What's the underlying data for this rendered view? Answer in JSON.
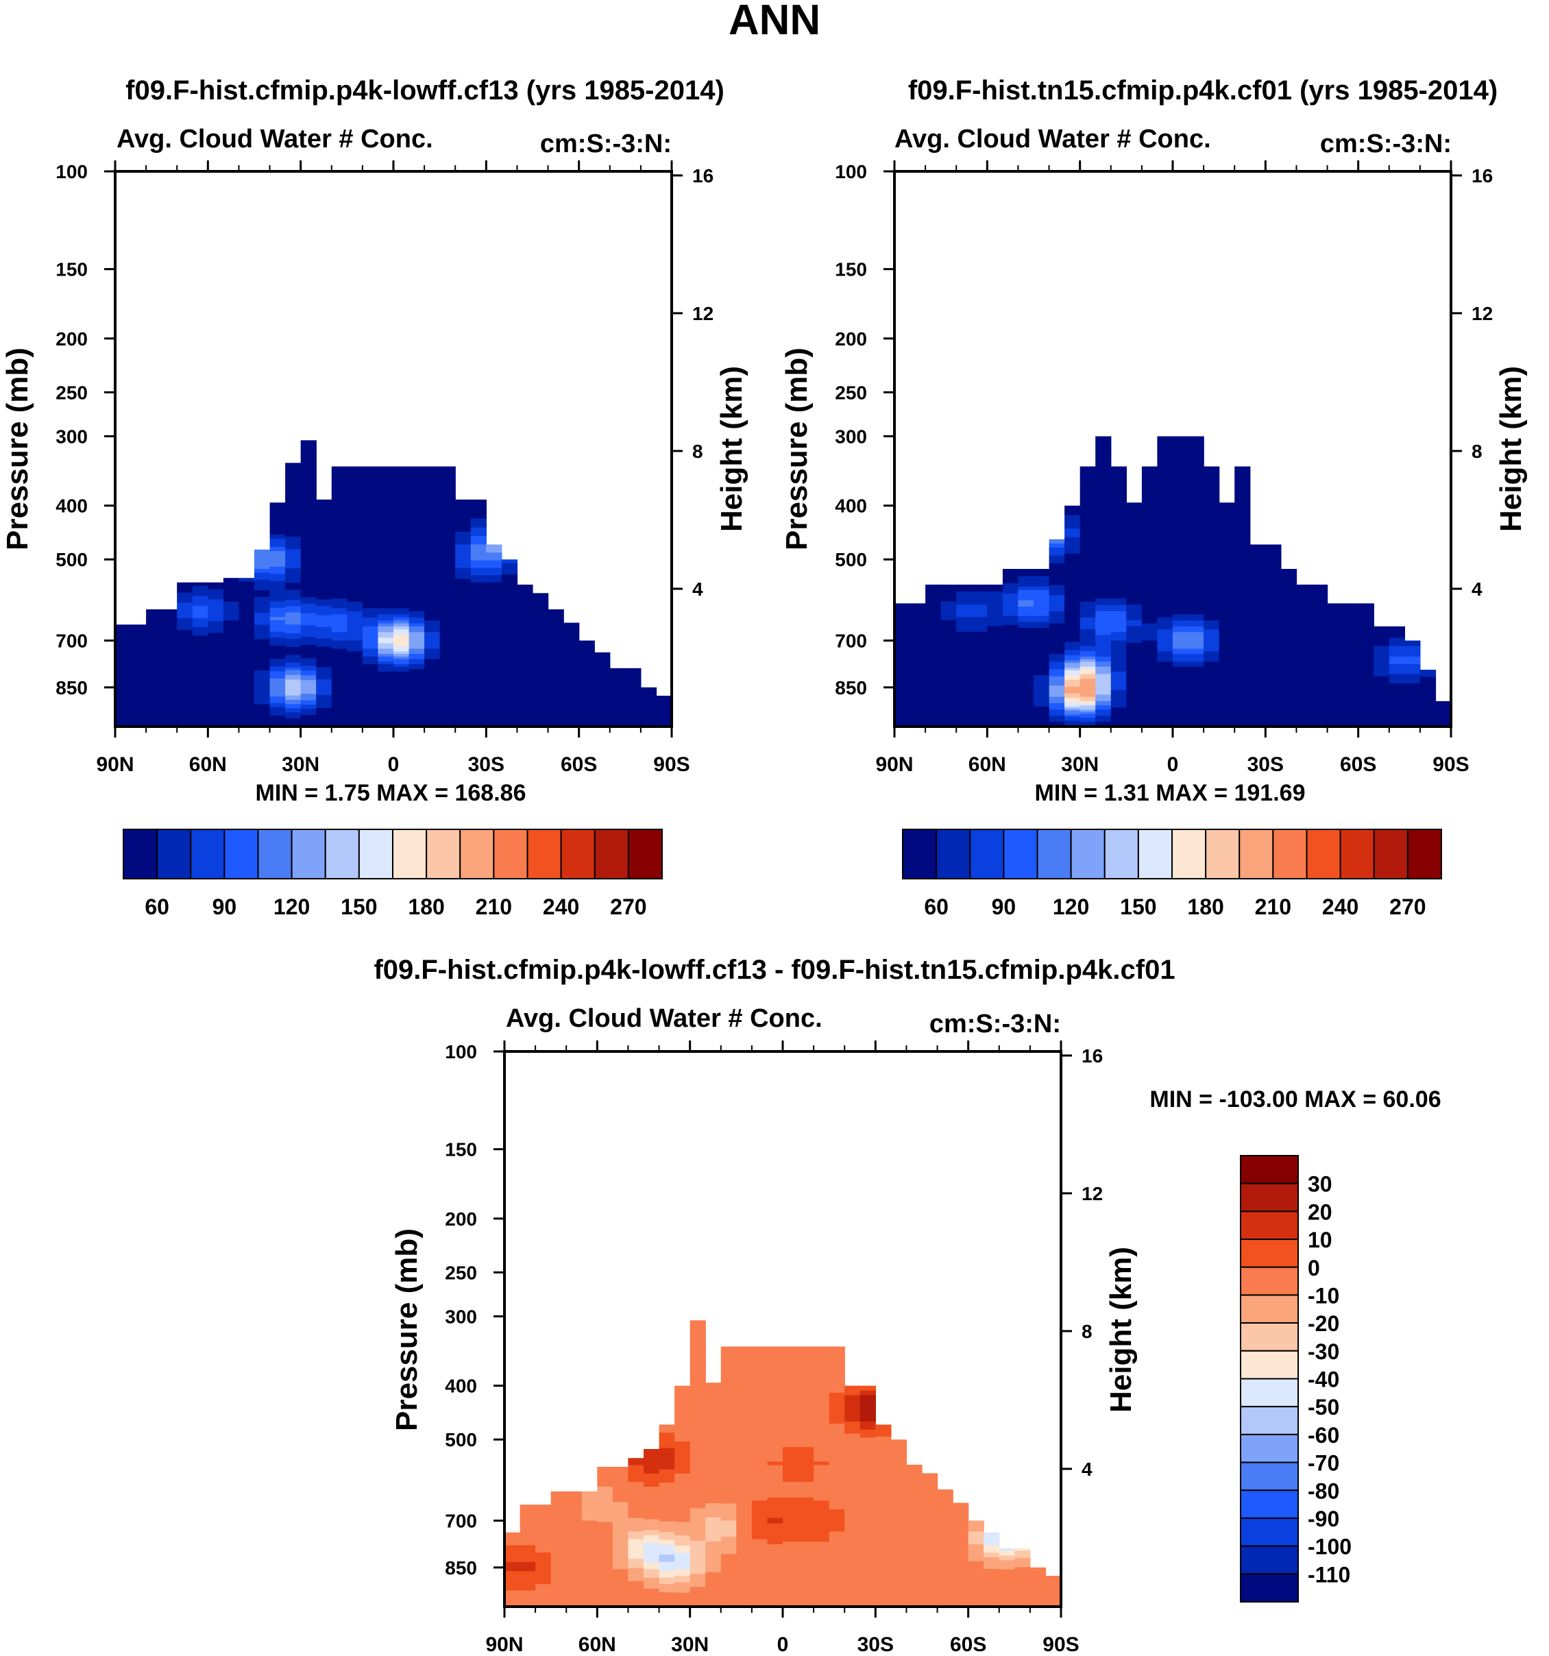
{
  "figure": {
    "title": "ANN"
  },
  "chart_data": [
    {
      "type": "heatmap",
      "title": "f09.F-hist.cfmip.p4k-lowff.cf13 (yrs 1985-2014)",
      "subtitle_left": "Avg. Cloud Water # Conc.",
      "subtitle_right": "cm:S:-3:N:",
      "ylabel": "Pressure (mb)",
      "ylabel_right": "Height (km)",
      "x_ticks": [
        "90N",
        "60N",
        "30N",
        "0",
        "30S",
        "60S",
        "90S"
      ],
      "y_ticks": [
        100,
        150,
        200,
        250,
        300,
        400,
        500,
        700,
        850
      ],
      "y_ticks_right": [
        16,
        12,
        8,
        4
      ],
      "ylim": [
        100,
        1000
      ],
      "y_scale": "log",
      "stats": "MIN =   1.75  MAX = 168.86",
      "colorbar_ticks": [
        "60",
        "90",
        "120",
        "150",
        "180",
        "210",
        "240",
        "270"
      ],
      "colorbar_colors": [
        "#000a80",
        "#0028b4",
        "#0a3fe0",
        "#1e5aff",
        "#4a7cf5",
        "#7fa3f9",
        "#b2c8fb",
        "#dce8fd",
        "#fde7d2",
        "#fcc7a8",
        "#fba57c",
        "#f97c4e",
        "#f1521f",
        "#d43010",
        "#b21b0b",
        "#870000"
      ],
      "field": {
        "lat_columns": [
          {
            "lat": -90,
            "top_p": 655
          },
          {
            "lat": -85,
            "top_p": 655
          },
          {
            "lat": -80,
            "top_p": 615
          },
          {
            "lat": -75,
            "top_p": 615
          },
          {
            "lat": -70,
            "top_p": 550
          },
          {
            "lat": -65,
            "top_p": 550
          },
          {
            "lat": -60,
            "top_p": 550
          },
          {
            "lat": -55,
            "top_p": 540
          },
          {
            "lat": -50,
            "top_p": 540
          },
          {
            "lat": -45,
            "top_p": 480
          },
          {
            "lat": -40,
            "top_p": 395
          },
          {
            "lat": -35,
            "top_p": 335
          },
          {
            "lat": -30,
            "top_p": 305
          },
          {
            "lat": -25,
            "top_p": 390
          },
          {
            "lat": -20,
            "top_p": 340
          },
          {
            "lat": -15,
            "top_p": 340
          },
          {
            "lat": -10,
            "top_p": 340
          },
          {
            "lat": -5,
            "top_p": 340
          },
          {
            "lat": 0,
            "top_p": 340
          },
          {
            "lat": 5,
            "top_p": 340
          },
          {
            "lat": 10,
            "top_p": 340
          },
          {
            "lat": 15,
            "top_p": 340
          },
          {
            "lat": 20,
            "top_p": 390
          },
          {
            "lat": 25,
            "top_p": 390
          },
          {
            "lat": 30,
            "top_p": 470
          },
          {
            "lat": 35,
            "top_p": 500
          },
          {
            "lat": 40,
            "top_p": 555
          },
          {
            "lat": 45,
            "top_p": 575
          },
          {
            "lat": 50,
            "top_p": 615
          },
          {
            "lat": 55,
            "top_p": 650
          },
          {
            "lat": 60,
            "top_p": 700
          },
          {
            "lat": 65,
            "top_p": 735
          },
          {
            "lat": 70,
            "top_p": 785
          },
          {
            "lat": 75,
            "top_p": 785
          },
          {
            "lat": 80,
            "top_p": 850
          },
          {
            "lat": 85,
            "top_p": 880
          }
        ],
        "base_value": 45,
        "features": [
          {
            "lat": -62,
            "p": 620,
            "value": 95
          },
          {
            "lat": -32,
            "p": 850,
            "value": 150
          },
          {
            "lat": -40,
            "p": 500,
            "value": 120
          },
          {
            "lat": -35,
            "p": 640,
            "value": 110
          },
          {
            "lat": -18,
            "p": 650,
            "value": 95
          },
          {
            "lat": 0,
            "p": 700,
            "value": 100
          },
          {
            "lat": 3,
            "p": 700,
            "value": 125
          },
          {
            "lat": 35,
            "p": 460,
            "value": 110
          },
          {
            "lat": 28,
            "p": 500,
            "value": 95
          }
        ]
      }
    },
    {
      "type": "heatmap",
      "title": "f09.F-hist.tn15.cfmip.p4k.cf01 (yrs 1985-2014)",
      "subtitle_left": "Avg. Cloud Water # Conc.",
      "subtitle_right": "cm:S:-3:N:",
      "ylabel": "Pressure (mb)",
      "ylabel_right": "Height (km)",
      "x_ticks": [
        "90N",
        "60N",
        "30N",
        "0",
        "30S",
        "60S",
        "90S"
      ],
      "y_ticks": [
        100,
        150,
        200,
        250,
        300,
        400,
        500,
        700,
        850
      ],
      "y_ticks_right": [
        16,
        12,
        8,
        4
      ],
      "ylim": [
        100,
        1000
      ],
      "y_scale": "log",
      "stats": "MIN =   1.31  MAX = 191.69",
      "colorbar_ticks": [
        "60",
        "90",
        "120",
        "150",
        "180",
        "210",
        "240",
        "270"
      ],
      "colorbar_colors": [
        "#000a80",
        "#0028b4",
        "#0a3fe0",
        "#1e5aff",
        "#4a7cf5",
        "#7fa3f9",
        "#b2c8fb",
        "#dce8fd",
        "#fde7d2",
        "#fcc7a8",
        "#fba57c",
        "#f97c4e",
        "#f1521f",
        "#d43010",
        "#b21b0b",
        "#870000"
      ],
      "field": {
        "lat_columns": [
          {
            "lat": -90,
            "top_p": 600
          },
          {
            "lat": -85,
            "top_p": 600
          },
          {
            "lat": -80,
            "top_p": 555
          },
          {
            "lat": -75,
            "top_p": 555
          },
          {
            "lat": -70,
            "top_p": 555
          },
          {
            "lat": -65,
            "top_p": 555
          },
          {
            "lat": -60,
            "top_p": 555
          },
          {
            "lat": -55,
            "top_p": 520
          },
          {
            "lat": -50,
            "top_p": 520
          },
          {
            "lat": -45,
            "top_p": 520
          },
          {
            "lat": -40,
            "top_p": 460
          },
          {
            "lat": -35,
            "top_p": 400
          },
          {
            "lat": -30,
            "top_p": 340
          },
          {
            "lat": -25,
            "top_p": 300
          },
          {
            "lat": -20,
            "top_p": 340
          },
          {
            "lat": -15,
            "top_p": 395
          },
          {
            "lat": -10,
            "top_p": 340
          },
          {
            "lat": -5,
            "top_p": 300
          },
          {
            "lat": 0,
            "top_p": 300
          },
          {
            "lat": 5,
            "top_p": 300
          },
          {
            "lat": 10,
            "top_p": 340
          },
          {
            "lat": 15,
            "top_p": 395
          },
          {
            "lat": 20,
            "top_p": 340
          },
          {
            "lat": 25,
            "top_p": 470
          },
          {
            "lat": 30,
            "top_p": 470
          },
          {
            "lat": 35,
            "top_p": 520
          },
          {
            "lat": 40,
            "top_p": 555
          },
          {
            "lat": 45,
            "top_p": 555
          },
          {
            "lat": 50,
            "top_p": 600
          },
          {
            "lat": 55,
            "top_p": 600
          },
          {
            "lat": 60,
            "top_p": 600
          },
          {
            "lat": 65,
            "top_p": 660
          },
          {
            "lat": 70,
            "top_p": 660
          },
          {
            "lat": 75,
            "top_p": 700
          },
          {
            "lat": 80,
            "top_p": 790
          },
          {
            "lat": 85,
            "top_p": 900
          }
        ],
        "base_value": 45,
        "features": [
          {
            "lat": -30,
            "p": 880,
            "value": 175
          },
          {
            "lat": -28,
            "p": 800,
            "value": 140
          },
          {
            "lat": -42,
            "p": 450,
            "value": 140
          },
          {
            "lat": -45,
            "p": 600,
            "value": 110
          },
          {
            "lat": -20,
            "p": 650,
            "value": 105
          },
          {
            "lat": 5,
            "p": 700,
            "value": 120
          },
          {
            "lat": -65,
            "p": 620,
            "value": 80
          },
          {
            "lat": 75,
            "p": 760,
            "value": 95
          }
        ]
      }
    },
    {
      "type": "heatmap",
      "title": "f09.F-hist.cfmip.p4k-lowff.cf13 - f09.F-hist.tn15.cfmip.p4k.cf01",
      "subtitle_left": "Avg. Cloud Water # Conc.",
      "subtitle_right": "cm:S:-3:N:",
      "ylabel": "Pressure (mb)",
      "ylabel_right": "Height (km)",
      "x_ticks": [
        "90N",
        "60N",
        "30N",
        "0",
        "30S",
        "60S",
        "90S"
      ],
      "y_ticks": [
        100,
        150,
        200,
        250,
        300,
        400,
        500,
        700,
        850
      ],
      "y_ticks_right": [
        16,
        12,
        8,
        4
      ],
      "ylim": [
        100,
        1000
      ],
      "y_scale": "log",
      "stats": "MIN = -103.00  MAX =  60.06",
      "colorbar_ticks": [
        "30",
        "20",
        "10",
        "0",
        "-10",
        "-20",
        "-30",
        "-40",
        "-50",
        "-60",
        "-70",
        "-80",
        "-90",
        "-100",
        "-110"
      ],
      "colorbar_colors": [
        "#870000",
        "#b21b0b",
        "#d43010",
        "#f1521f",
        "#f97c4e",
        "#fba57c",
        "#fcc7a8",
        "#fde7d2",
        "#dce8fd",
        "#b2c8fb",
        "#7fa3f9",
        "#4a7cf5",
        "#1e5aff",
        "#0a3fe0",
        "#0028b4",
        "#000a80"
      ],
      "field": {
        "lat_columns": [
          {
            "lat": -90,
            "top_p": 735
          },
          {
            "lat": -85,
            "top_p": 655
          },
          {
            "lat": -80,
            "top_p": 655
          },
          {
            "lat": -75,
            "top_p": 620
          },
          {
            "lat": -70,
            "top_p": 620
          },
          {
            "lat": -65,
            "top_p": 620
          },
          {
            "lat": -60,
            "top_p": 560
          },
          {
            "lat": -55,
            "top_p": 560
          },
          {
            "lat": -50,
            "top_p": 540
          },
          {
            "lat": -45,
            "top_p": 520
          },
          {
            "lat": -40,
            "top_p": 470
          },
          {
            "lat": -35,
            "top_p": 400
          },
          {
            "lat": -30,
            "top_p": 305
          },
          {
            "lat": -25,
            "top_p": 395
          },
          {
            "lat": -20,
            "top_p": 340
          },
          {
            "lat": -15,
            "top_p": 340
          },
          {
            "lat": -10,
            "top_p": 340
          },
          {
            "lat": -5,
            "top_p": 340
          },
          {
            "lat": 0,
            "top_p": 340
          },
          {
            "lat": 5,
            "top_p": 340
          },
          {
            "lat": 10,
            "top_p": 340
          },
          {
            "lat": 15,
            "top_p": 340
          },
          {
            "lat": 20,
            "top_p": 400
          },
          {
            "lat": 25,
            "top_p": 400
          },
          {
            "lat": 30,
            "top_p": 470
          },
          {
            "lat": 35,
            "top_p": 500
          },
          {
            "lat": 40,
            "top_p": 555
          },
          {
            "lat": 45,
            "top_p": 575
          },
          {
            "lat": 50,
            "top_p": 615
          },
          {
            "lat": 55,
            "top_p": 650
          },
          {
            "lat": 60,
            "top_p": 700
          },
          {
            "lat": 65,
            "top_p": 735
          },
          {
            "lat": 70,
            "top_p": 785
          },
          {
            "lat": 75,
            "top_p": 785
          },
          {
            "lat": 80,
            "top_p": 850
          },
          {
            "lat": 85,
            "top_p": 880
          }
        ],
        "base_value": -5,
        "features": [
          {
            "lat": -35,
            "p": 830,
            "value": -45
          },
          {
            "lat": -45,
            "p": 780,
            "value": -32
          },
          {
            "lat": -60,
            "p": 650,
            "value": -15
          },
          {
            "lat": -20,
            "p": 720,
            "value": -25
          },
          {
            "lat": 72,
            "p": 750,
            "value": -55
          },
          {
            "lat": -85,
            "p": 850,
            "value": 12
          },
          {
            "lat": 28,
            "p": 440,
            "value": 28
          },
          {
            "lat": -5,
            "p": 700,
            "value": 10
          },
          {
            "lat": 5,
            "p": 550,
            "value": 5
          },
          {
            "lat": -42,
            "p": 540,
            "value": 20
          },
          {
            "lat": 10,
            "p": 700,
            "value": 8
          },
          {
            "lat": 45,
            "p": 700,
            "value": -8
          }
        ]
      }
    }
  ]
}
